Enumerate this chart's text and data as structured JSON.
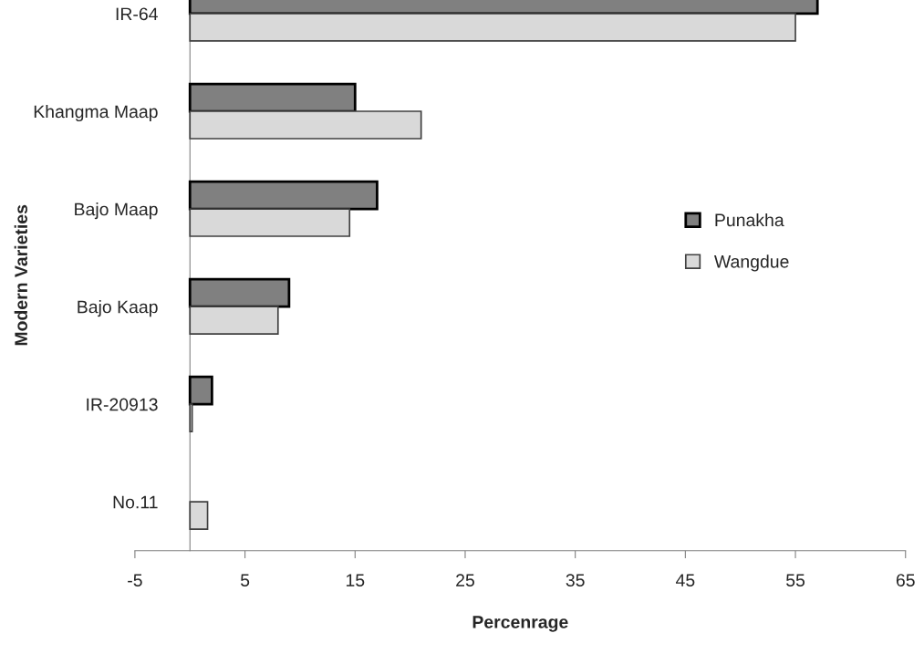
{
  "chart_data": {
    "type": "bar",
    "orientation": "horizontal",
    "xlabel": "Percenrage",
    "ylabel": "Modern Varieties",
    "categories": [
      "IR-64",
      "Khangma Maap",
      "Bajo Maap",
      "Bajo Kaap",
      "IR-20913",
      "No.11"
    ],
    "series": [
      {
        "name": "Punakha",
        "color": "#808080",
        "values": [
          57,
          15,
          17,
          9,
          2,
          null
        ]
      },
      {
        "name": "Wangdue",
        "color": "#d9d9d9",
        "values": [
          55,
          21,
          14.5,
          8,
          0.2,
          1.6
        ]
      }
    ],
    "xlim": [
      -5,
      65
    ],
    "xticks": [
      -5,
      5,
      15,
      25,
      35,
      45,
      55,
      65
    ],
    "grid": false,
    "legend": "right"
  }
}
